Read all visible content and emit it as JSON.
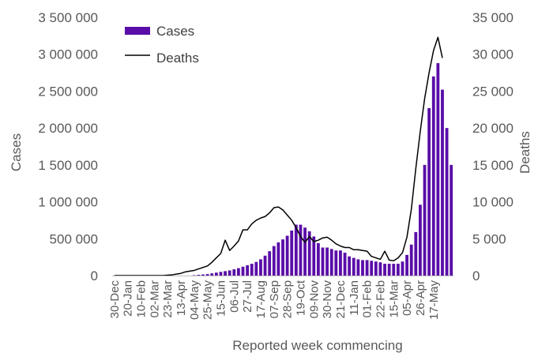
{
  "chart_data": {
    "type": "bar",
    "xlabel": "Reported week commencing",
    "ylabel": "Cases",
    "y2label": "Deaths",
    "ylim": [
      0,
      3500000
    ],
    "y2lim": [
      0,
      35000
    ],
    "y_ticks": [
      0,
      500000,
      1000000,
      1500000,
      2000000,
      2500000,
      3000000,
      3500000
    ],
    "y_tick_labels": [
      "0",
      "500 000",
      "1 000 000",
      "1 500 000",
      "2 000 000",
      "2 500 000",
      "3 000 000",
      "3 500 000"
    ],
    "y2_ticks": [
      0,
      5000,
      10000,
      15000,
      20000,
      25000,
      30000,
      35000
    ],
    "y2_tick_labels": [
      "0",
      "5 000",
      "10 000",
      "15 000",
      "20 000",
      "25 000",
      "30 000",
      "35 000"
    ],
    "x_tick_labels": [
      "30-Dec",
      "20-Jan",
      "10-Feb",
      "02-Mar",
      "23-Mar",
      "13-Apr",
      "04-May",
      "25-May",
      "15-Jun",
      "06-Jul",
      "27-Jul",
      "17-Aug",
      "07-Sep",
      "28-Sep",
      "19-Oct",
      "09-Nov",
      "30-Nov",
      "21-Dec",
      "11-Jan",
      "01-Feb",
      "22-Feb",
      "15-Mar",
      "05-Apr",
      "26-Apr",
      "17-May"
    ],
    "x_tick_index": [
      0,
      3,
      6,
      9,
      12,
      15,
      18,
      21,
      24,
      27,
      30,
      33,
      36,
      39,
      42,
      45,
      48,
      51,
      54,
      57,
      60,
      63,
      66,
      69,
      72
    ],
    "legend_position": "top-left",
    "legend": [
      "Cases",
      "Deaths"
    ],
    "colors": {
      "cases": "#5a0da8",
      "deaths": "#000000"
    },
    "series": [
      {
        "name": "Cases",
        "type": "bar",
        "axis": "left",
        "values": [
          0,
          0,
          0,
          0,
          0,
          0,
          0,
          0,
          0,
          0,
          0,
          0,
          0,
          0,
          0,
          0,
          0,
          0,
          5000,
          10000,
          15000,
          20000,
          30000,
          40000,
          50000,
          60000,
          70000,
          85000,
          100000,
          120000,
          140000,
          160000,
          185000,
          220000,
          270000,
          330000,
          400000,
          450000,
          490000,
          540000,
          610000,
          690000,
          690000,
          650000,
          600000,
          530000,
          440000,
          380000,
          380000,
          360000,
          340000,
          340000,
          310000,
          260000,
          240000,
          220000,
          210000,
          210000,
          200000,
          190000,
          180000,
          160000,
          160000,
          160000,
          160000,
          190000,
          280000,
          420000,
          590000,
          960000,
          1500000,
          2270000,
          2700000,
          2880000,
          2520000,
          2000000,
          1500000
        ]
      },
      {
        "name": "Deaths",
        "type": "line",
        "axis": "right",
        "values": [
          0,
          0,
          0,
          0,
          0,
          0,
          0,
          0,
          0,
          0,
          0,
          0,
          50,
          100,
          200,
          300,
          500,
          600,
          700,
          900,
          1100,
          1300,
          1800,
          2400,
          3000,
          4800,
          3400,
          4000,
          4700,
          6200,
          6200,
          7000,
          7500,
          7800,
          8000,
          8500,
          9200,
          9300,
          8900,
          8200,
          7500,
          6500,
          5300,
          4500,
          5300,
          4600,
          4800,
          5100,
          5200,
          4800,
          4300,
          4000,
          3800,
          3800,
          3500,
          3500,
          3400,
          3300,
          2600,
          2400,
          2200,
          3300,
          2100,
          2000,
          2400,
          3100,
          5200,
          9000,
          14500,
          19500,
          24000,
          27500,
          30500,
          32300,
          29500
        ]
      }
    ]
  }
}
